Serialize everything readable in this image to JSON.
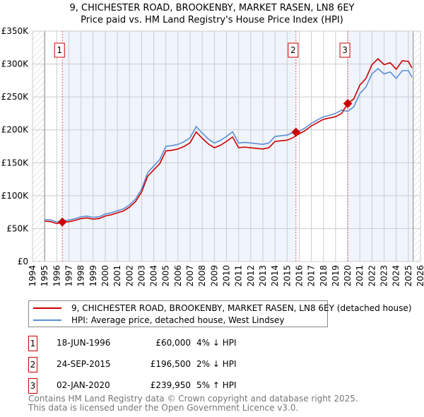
{
  "chart_data": {
    "type": "line",
    "title": "9, CHICHESTER ROAD, BROOKENBY, MARKET RASEN, LN8 6EY",
    "subtitle": "Price paid vs. HM Land Registry's House Price Index (HPI)",
    "ylim": [
      0,
      350000
    ],
    "xlim": [
      1994,
      2026
    ],
    "yticks": [
      0,
      50000,
      100000,
      150000,
      200000,
      250000,
      300000,
      350000
    ],
    "ytick_labels": [
      "£0",
      "£50K",
      "£100K",
      "£150K",
      "£200K",
      "£250K",
      "£300K",
      "£350K"
    ],
    "xticks": [
      1994,
      1995,
      1996,
      1997,
      1998,
      1999,
      2000,
      2001,
      2002,
      2003,
      2004,
      2005,
      2006,
      2007,
      2008,
      2009,
      2010,
      2011,
      2012,
      2013,
      2014,
      2015,
      2016,
      2017,
      2018,
      2019,
      2020,
      2021,
      2022,
      2023,
      2024,
      2025,
      2026
    ],
    "grid": true,
    "x": [
      1995,
      1995.5,
      1996,
      1996.5,
      1997,
      1997.5,
      1998,
      1998.5,
      1999,
      1999.5,
      2000,
      2000.5,
      2001,
      2001.5,
      2002,
      2002.5,
      2003,
      2003.5,
      2004,
      2004.5,
      2005,
      2005.5,
      2006,
      2006.5,
      2007,
      2007.5,
      2008,
      2008.5,
      2009,
      2009.5,
      2010,
      2010.5,
      2011,
      2011.5,
      2012,
      2012.5,
      2013,
      2013.5,
      2014,
      2014.5,
      2015,
      2015.5,
      2016,
      2016.5,
      2017,
      2017.5,
      2018,
      2018.5,
      2019,
      2019.5,
      2020,
      2020.5,
      2021,
      2021.5,
      2022,
      2022.5,
      2023,
      2023.5,
      2024,
      2024.5,
      2025,
      2025.3
    ],
    "series": [
      {
        "name": "9, CHICHESTER ROAD, BROOKENBY, MARKET RASEN, LN8 6EY (detached house)",
        "color": "#cc0000",
        "values": [
          61400,
          60500,
          57600,
          59500,
          60500,
          62400,
          65300,
          66200,
          64300,
          65300,
          69100,
          71000,
          73900,
          76800,
          82600,
          91200,
          105600,
          129600,
          139200,
          148800,
          168000,
          169000,
          170900,
          174700,
          180500,
          196800,
          187200,
          178600,
          172800,
          176600,
          182400,
          189100,
          172800,
          173800,
          172800,
          171800,
          170900,
          172800,
          182400,
          183400,
          184300,
          188200,
          194000,
          199000,
          206000,
          211000,
          216000,
          218000,
          220000,
          225000,
          240000,
          247000,
          268000,
          278000,
          299000,
          308000,
          299000,
          302000,
          292000,
          305000,
          304000,
          294000
        ]
      },
      {
        "name": "HPI: Average price, detached house, West Lindsey",
        "color": "#5b8fd6",
        "values": [
          64000,
          63000,
          60000,
          62000,
          63000,
          65000,
          68000,
          69000,
          67000,
          68000,
          72000,
          74000,
          77000,
          80000,
          86000,
          95000,
          110000,
          135000,
          145000,
          155000,
          175000,
          176000,
          178000,
          182000,
          188000,
          205000,
          195000,
          186000,
          180000,
          184000,
          190000,
          197000,
          180000,
          181000,
          180000,
          179000,
          178000,
          180000,
          190000,
          191000,
          192000,
          196000,
          198000,
          203000,
          210000,
          215000,
          220000,
          222000,
          225000,
          230000,
          228000,
          235000,
          255000,
          265000,
          285000,
          293000,
          285000,
          288000,
          278000,
          290000,
          290000,
          280000
        ]
      }
    ],
    "sales": [
      {
        "label": "1",
        "date": "18-JUN-1996",
        "x": 1996.46,
        "price": 60000,
        "price_text": "£60,000",
        "hpi_text": "4% ↓ HPI"
      },
      {
        "label": "2",
        "date": "24-SEP-2015",
        "x": 2015.73,
        "price": 196500,
        "price_text": "£196,500",
        "hpi_text": "2% ↓ HPI"
      },
      {
        "label": "3",
        "date": "02-JAN-2020",
        "x": 2020.0,
        "price": 239950,
        "price_text": "£239,950",
        "hpi_text": "5% ↑ HPI"
      }
    ],
    "data_end": 2025.4
  },
  "footer": {
    "line1": "Contains HM Land Registry data © Crown copyright and database right 2025.",
    "line2": "This data is licensed under the Open Government Licence v3.0."
  }
}
